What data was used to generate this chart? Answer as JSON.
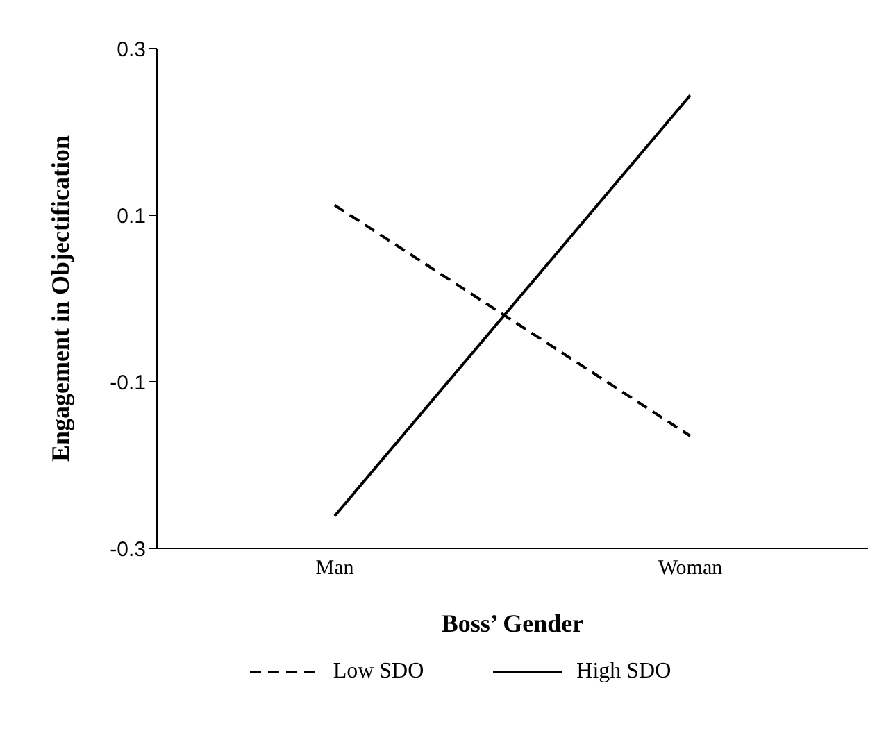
{
  "chart_data": {
    "type": "line",
    "xlabel": "Boss’ Gender",
    "ylabel": "Engagement in Objectification",
    "categories": [
      "Man",
      "Woman"
    ],
    "series": [
      {
        "name": "Low SDO",
        "color": "#000000",
        "values": [
          0.112,
          -0.165
        ],
        "line_style": "dashed"
      },
      {
        "name": "High SDO",
        "color": "#000000",
        "values": [
          -0.261,
          0.244
        ],
        "line_style": "solid"
      }
    ],
    "ylim": [
      -0.3,
      0.3
    ],
    "yticks": [
      -0.3,
      -0.1,
      0.1,
      0.3
    ],
    "grid": false,
    "legend": "bottom",
    "marker": "none"
  }
}
